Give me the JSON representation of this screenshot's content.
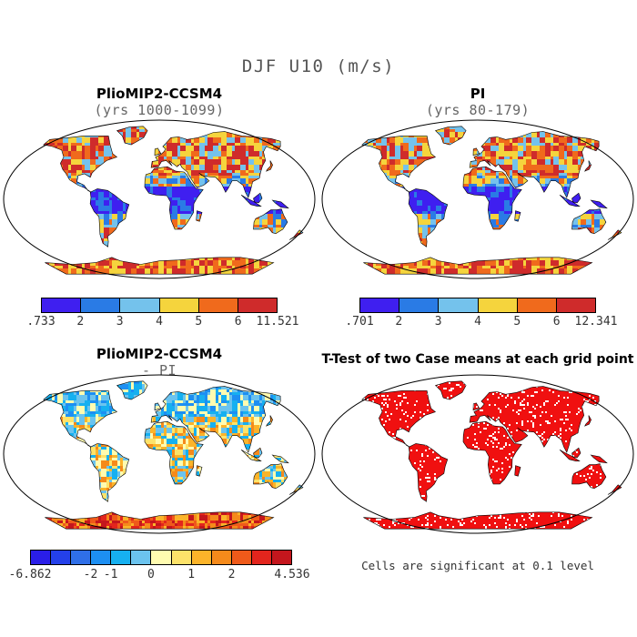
{
  "figure": {
    "title": "DJF U10 (m/s)",
    "note": "Cells are significant at 0.1 level"
  },
  "panels": [
    {
      "id": "pliomip2",
      "title": "PlioMIP2-CCSM4",
      "subtitle": "(yrs 1000-1099)",
      "colorbar": {
        "labels": [
          ".733",
          "2",
          "3",
          "4",
          "5",
          "6",
          "11.521"
        ],
        "colors": [
          "#3f1ff0",
          "#2a7be5",
          "#74c2ec",
          "#f5d43d",
          "#f06a1c",
          "#cf2b2b"
        ]
      }
    },
    {
      "id": "pi",
      "title": "PI",
      "subtitle": "(yrs 80-179)",
      "colorbar": {
        "labels": [
          ".701",
          "2",
          "3",
          "4",
          "5",
          "6",
          "12.341"
        ],
        "colors": [
          "#3f1ff0",
          "#2a7be5",
          "#74c2ec",
          "#f5d43d",
          "#f06a1c",
          "#cf2b2b"
        ]
      }
    },
    {
      "id": "diff",
      "title": "PlioMIP2-CCSM4",
      "subtitle": "- PI",
      "colorbar": {
        "labels": [
          "-6.862",
          "-2",
          "-1",
          "0",
          "1",
          "2",
          "4.536"
        ],
        "colors": [
          "#2a1ee8",
          "#2440ea",
          "#2f6fe8",
          "#1d8ff2",
          "#16b0f0",
          "#6bc3ee",
          "#fffbb0",
          "#fde36a",
          "#fbb42a",
          "#f58a1b",
          "#ef5a1a",
          "#e3251d",
          "#c4161d"
        ]
      }
    },
    {
      "id": "ttest",
      "title": "T-Test of two Case means at each grid point",
      "subtitle": ""
    }
  ]
}
